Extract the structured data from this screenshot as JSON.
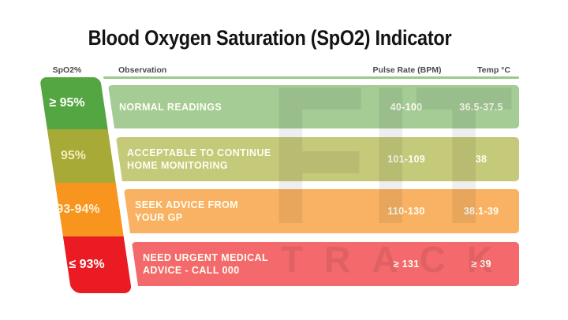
{
  "title": "Blood Oxygen Saturation (SpO2) Indicator",
  "watermark": {
    "line1": "FIT",
    "line2": "TRACK"
  },
  "chart_data": {
    "type": "table",
    "title": "Blood Oxygen Saturation (SpO2) Indicator",
    "columns": [
      "SpO2%",
      "Observation",
      "Pulse Rate (BPM)",
      "Temp °C"
    ],
    "rows": [
      {
        "severity": "normal",
        "spo2": "≥ 95%",
        "observation": "NORMAL READINGS",
        "observation_line2": "",
        "pulse": "40-100",
        "temp": "36.5-37.5",
        "bar_color": "#54a642",
        "band_color": "#a5cc95"
      },
      {
        "severity": "acceptable",
        "spo2": "95%",
        "observation": "ACCEPTABLE TO CONTINUE",
        "observation_line2": "HOME MONITORING",
        "pulse": "101-109",
        "temp": "38",
        "bar_color": "#a8aa38",
        "band_color": "#c5c97a"
      },
      {
        "severity": "caution",
        "spo2": "93-94%",
        "observation": "SEEK ADVICE FROM",
        "observation_line2": "YOUR GP",
        "pulse": "110-130",
        "temp": "38.1-39",
        "bar_color": "#f8951e",
        "band_color": "#f9b263"
      },
      {
        "severity": "urgent",
        "spo2": "≤ 93%",
        "observation": "NEED URGENT MEDICAL",
        "observation_line2": "ADVICE - CALL 000",
        "pulse": "≥ 131",
        "temp": "≥ 39",
        "bar_color": "#ea1b23",
        "band_color": "#f4696b"
      }
    ]
  }
}
